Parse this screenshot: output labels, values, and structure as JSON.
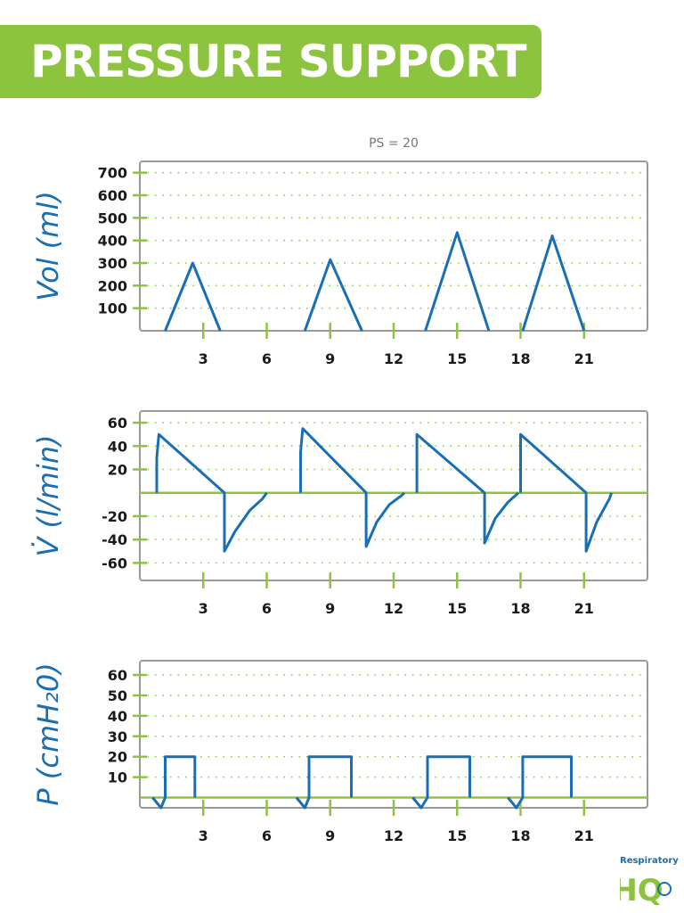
{
  "header": {
    "title": "PRESSURE SUPPORT"
  },
  "logo": {
    "text": "Respiratory",
    "mark": "HQ"
  },
  "colors": {
    "accent": "#8dc43f",
    "line": "#1a6fb4",
    "axis_text": "#1a1a1a",
    "frame": "#999999"
  },
  "chart_data": [
    {
      "type": "line",
      "title": "PS = 20",
      "ylabel": "Vol (ml)",
      "xlabel": "",
      "xlim": [
        0,
        24
      ],
      "ylim": [
        0,
        750
      ],
      "xticks": [
        3,
        6,
        9,
        12,
        15,
        18,
        21
      ],
      "yticks": [
        100,
        200,
        300,
        400,
        500,
        600,
        700
      ],
      "grid": true,
      "series": [
        {
          "values": [
            [
              1.2,
              0
            ],
            [
              2.5,
              300
            ],
            [
              3.8,
              0
            ],
            [
              null,
              null
            ],
            [
              7.8,
              0
            ],
            [
              9.0,
              315
            ],
            [
              10.5,
              0
            ],
            [
              null,
              null
            ],
            [
              13.5,
              0
            ],
            [
              15.0,
              435
            ],
            [
              16.5,
              0
            ],
            [
              null,
              null
            ],
            [
              18.1,
              0
            ],
            [
              19.5,
              420
            ],
            [
              21.0,
              0
            ]
          ]
        }
      ]
    },
    {
      "type": "line",
      "title": "",
      "ylabel": "V̇ (l/min)",
      "xlabel": "",
      "xlim": [
        0,
        24
      ],
      "ylim": [
        -75,
        70
      ],
      "xticks": [
        3,
        6,
        9,
        12,
        15,
        18,
        21
      ],
      "yticks": [
        -60,
        -40,
        -20,
        20,
        40,
        60
      ],
      "grid": true,
      "series": [
        {
          "values": [
            [
              0.8,
              0
            ],
            [
              0.8,
              30
            ],
            [
              0.9,
              50
            ],
            [
              4.0,
              0
            ],
            [
              4.0,
              -50
            ],
            [
              4.5,
              -33
            ],
            [
              5.2,
              -15
            ],
            [
              5.8,
              -5
            ],
            [
              6.0,
              0
            ],
            [
              null,
              null
            ],
            [
              7.6,
              0
            ],
            [
              7.6,
              35
            ],
            [
              7.7,
              55
            ],
            [
              10.7,
              0
            ],
            [
              10.7,
              -46
            ],
            [
              11.2,
              -25
            ],
            [
              11.8,
              -10
            ],
            [
              12.4,
              -2
            ],
            [
              12.5,
              0
            ],
            [
              null,
              null
            ],
            [
              13.1,
              0
            ],
            [
              13.1,
              50
            ],
            [
              16.3,
              0
            ],
            [
              16.3,
              -43
            ],
            [
              16.8,
              -22
            ],
            [
              17.4,
              -8
            ],
            [
              17.9,
              0
            ],
            [
              null,
              null
            ],
            [
              18.0,
              0
            ],
            [
              18.0,
              50
            ],
            [
              21.1,
              0
            ],
            [
              21.1,
              -50
            ],
            [
              21.6,
              -25
            ],
            [
              22.2,
              -5
            ],
            [
              22.3,
              0
            ]
          ]
        }
      ]
    },
    {
      "type": "line",
      "title": "",
      "ylabel": "P (cmH₂0)",
      "xlabel": "",
      "xlim": [
        0,
        24
      ],
      "ylim": [
        -5,
        67
      ],
      "xticks": [
        3,
        6,
        9,
        12,
        15,
        18,
        21
      ],
      "yticks": [
        10,
        20,
        30,
        40,
        50,
        60
      ],
      "grid": true,
      "series": [
        {
          "values": [
            [
              0.6,
              0
            ],
            [
              1.0,
              -5
            ],
            [
              1.2,
              0
            ],
            [
              1.2,
              20
            ],
            [
              2.6,
              20
            ],
            [
              2.6,
              0
            ],
            [
              null,
              null
            ],
            [
              7.4,
              0
            ],
            [
              7.8,
              -5
            ],
            [
              8.0,
              0
            ],
            [
              8.0,
              20
            ],
            [
              10.0,
              20
            ],
            [
              10.0,
              0
            ],
            [
              null,
              null
            ],
            [
              12.9,
              0
            ],
            [
              13.3,
              -5
            ],
            [
              13.6,
              0
            ],
            [
              13.6,
              20
            ],
            [
              15.6,
              20
            ],
            [
              15.6,
              0
            ],
            [
              null,
              null
            ],
            [
              17.4,
              0
            ],
            [
              17.8,
              -5
            ],
            [
              18.1,
              0
            ],
            [
              18.1,
              20
            ],
            [
              20.4,
              20
            ],
            [
              20.4,
              0
            ]
          ]
        }
      ]
    }
  ]
}
